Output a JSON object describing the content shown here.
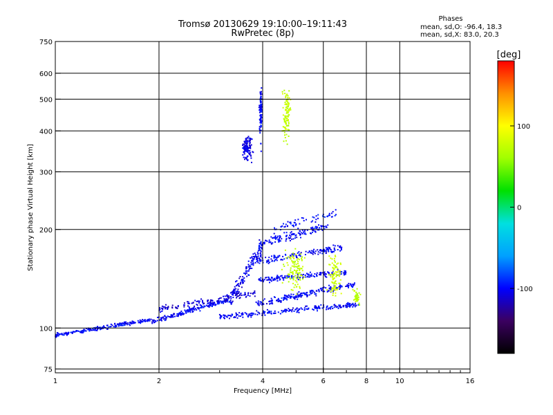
{
  "chart_data": {
    "type": "scatter",
    "title": "Tromsø 20130629 19:10:00–19:11:43",
    "subtitle": "RwPretec (8p)",
    "xlabel": "Frequency [MHz]",
    "ylabel": "Stationary phase Virtual Height [km]",
    "x_scale": "log",
    "y_scale": "log",
    "xlim": [
      1,
      16
    ],
    "ylim": [
      73,
      750
    ],
    "x_ticks": [
      1,
      2,
      4,
      6,
      8,
      10,
      16
    ],
    "x_tick_labels": [
      "1",
      "2",
      "4",
      "6",
      "8",
      "10",
      "16"
    ],
    "y_ticks": [
      75,
      100,
      200,
      300,
      400,
      500,
      600,
      750
    ],
    "y_tick_labels": [
      "75",
      "100",
      "200",
      "300",
      "400",
      "500",
      "600",
      "750"
    ],
    "grid": true,
    "stats": {
      "header": "Phases",
      "line_o": "mean, sd,O: -96.4, 18.3",
      "line_x": "mean, sd,X:  83.0, 20.3"
    },
    "colorbar": {
      "label": "[deg]",
      "range": [
        -180,
        180
      ],
      "ticks": [
        100,
        0,
        -100
      ],
      "tick_labels": [
        "100",
        "0",
        "-100"
      ],
      "stops": [
        "#000000",
        "#3b0060",
        "#0000ff",
        "#00a0ff",
        "#00e0e0",
        "#00e000",
        "#a0ff00",
        "#ffff00",
        "#ff9000",
        "#ff0000"
      ]
    },
    "traces": [
      {
        "x_range": [
          1.0,
          1.9
        ],
        "y_range": [
          95,
          106
        ],
        "count": 220,
        "phase": -100,
        "jitter": 2
      },
      {
        "x_range": [
          1.9,
          3.2
        ],
        "y_range": [
          104,
          122
        ],
        "count": 200,
        "phase": -100,
        "jitter": 3
      },
      {
        "x_range": [
          3.2,
          4.0
        ],
        "y_range": [
          120,
          175
        ],
        "count": 150,
        "phase": -105,
        "jitter": 12
      },
      {
        "x_range": [
          2.0,
          3.8
        ],
        "y_range": [
          114,
          128
        ],
        "count": 120,
        "phase": -110,
        "jitter": 4
      },
      {
        "x_range": [
          3.0,
          7.6
        ],
        "y_range": [
          108,
          118
        ],
        "count": 230,
        "phase": -100,
        "jitter": 3
      },
      {
        "x_range": [
          3.8,
          7.4
        ],
        "y_range": [
          118,
          136
        ],
        "count": 200,
        "phase": -100,
        "jitter": 4
      },
      {
        "x_range": [
          3.9,
          7.0
        ],
        "y_range": [
          140,
          148
        ],
        "count": 160,
        "phase": -100,
        "jitter": 4
      },
      {
        "x_range": [
          3.9,
          6.8
        ],
        "y_range": [
          160,
          176
        ],
        "count": 150,
        "phase": -100,
        "jitter": 6
      },
      {
        "x_range": [
          3.9,
          6.2
        ],
        "y_range": [
          180,
          205
        ],
        "count": 140,
        "phase": -100,
        "jitter": 8
      },
      {
        "x_range": [
          4.3,
          6.6
        ],
        "y_range": [
          200,
          225
        ],
        "count": 60,
        "phase": -95,
        "jitter": 8
      }
    ],
    "clusters": [
      {
        "x": 3.6,
        "y": 355,
        "count": 120,
        "phase": -105,
        "dx": 0.18,
        "dy": 40
      },
      {
        "x": 3.95,
        "y": 450,
        "count": 100,
        "phase": -100,
        "dx": 0.05,
        "dy": 110
      },
      {
        "x": 4.7,
        "y": 450,
        "count": 110,
        "phase": 75,
        "dx": 0.16,
        "dy": 120
      },
      {
        "x": 5.0,
        "y": 150,
        "count": 110,
        "phase": 75,
        "dx": 0.55,
        "dy": 35
      },
      {
        "x": 6.5,
        "y": 145,
        "count": 90,
        "phase": 80,
        "dx": 0.45,
        "dy": 30
      },
      {
        "x": 7.5,
        "y": 125,
        "count": 40,
        "phase": 70,
        "dx": 0.25,
        "dy": 10
      }
    ]
  }
}
